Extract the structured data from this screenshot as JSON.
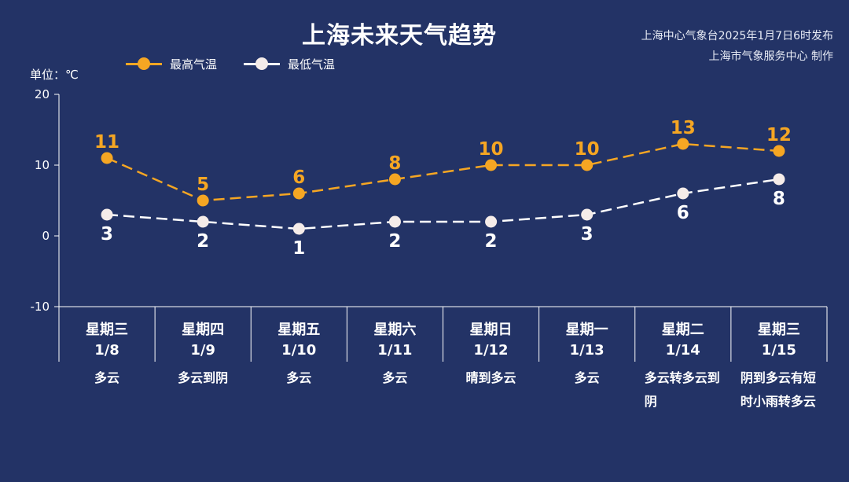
{
  "title": "上海未来天气趋势",
  "publisher": [
    "上海中心气象台2025年1月7日6时发布",
    "上海市气象服务中心 制作"
  ],
  "unit_label": "单位：℃",
  "legend": [
    {
      "label": "最高气温",
      "color": "#f5a623"
    },
    {
      "label": "最低气温",
      "color": "#f5ece9"
    }
  ],
  "days": [
    {
      "weekday": "星期三",
      "date": "1/8",
      "weather": "多云"
    },
    {
      "weekday": "星期四",
      "date": "1/9",
      "weather": "多云到阴"
    },
    {
      "weekday": "星期五",
      "date": "1/10",
      "weather": "多云"
    },
    {
      "weekday": "星期六",
      "date": "1/11",
      "weather": "多云"
    },
    {
      "weekday": "星期日",
      "date": "1/12",
      "weather": "晴到多云"
    },
    {
      "weekday": "星期一",
      "date": "1/13",
      "weather": "多云"
    },
    {
      "weekday": "星期二",
      "date": "1/14",
      "weather": "多云转多云到阴"
    },
    {
      "weekday": "星期三",
      "date": "1/15",
      "weather": "阴到多云有短时小雨转多云"
    }
  ],
  "chart_data": {
    "type": "line",
    "categories": [
      "1/8",
      "1/9",
      "1/10",
      "1/11",
      "1/12",
      "1/13",
      "1/14",
      "1/15"
    ],
    "series": [
      {
        "name": "最高气温",
        "values": [
          11,
          5,
          6,
          8,
          10,
          10,
          13,
          12
        ],
        "color": "#f5a623"
      },
      {
        "name": "最低气温",
        "values": [
          3,
          2,
          1,
          2,
          2,
          3,
          6,
          8
        ],
        "color": "#f5ece9"
      }
    ],
    "ylabel": "单位：℃",
    "ylim": [
      -10,
      20
    ],
    "yticks": [
      "20",
      "10",
      "0",
      "-10"
    ],
    "grid": false,
    "legend_position": "top-left"
  }
}
